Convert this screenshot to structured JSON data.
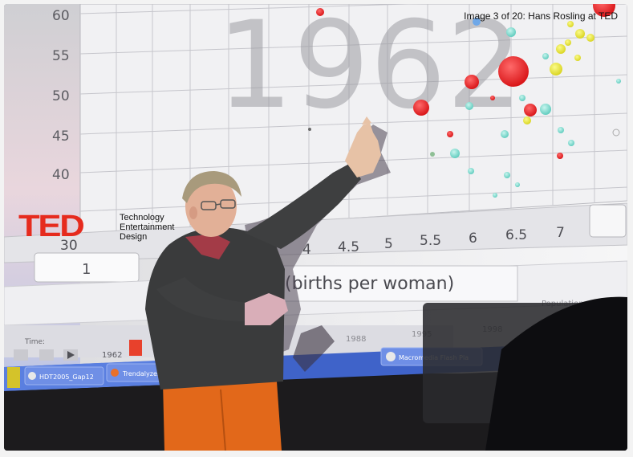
{
  "caption": {
    "text": "Image 3 of 20:  Hans Rosling at TED"
  },
  "logo": {
    "word": "TED",
    "tagline": [
      "Technology",
      "Entertainment",
      "Design"
    ],
    "color": "#e62b1e"
  },
  "projection": {
    "year": "1962",
    "y_ticks": [
      "60",
      "55",
      "50",
      "45",
      "40"
    ],
    "x_ticks": [
      "30",
      "4",
      "4.5",
      "5",
      "5.5",
      "6",
      "6.5",
      "7"
    ],
    "x_axis_label": "(births per woman)",
    "slider_value": "1",
    "time_label": "Time:",
    "timeline_years": [
      "1962",
      "1988",
      "1995",
      "1998"
    ],
    "population_label": "Population: total",
    "taskbar_items": [
      "HDT2005_Gap12",
      "Trendalyzer",
      "Macromedia Flash Pla"
    ]
  }
}
